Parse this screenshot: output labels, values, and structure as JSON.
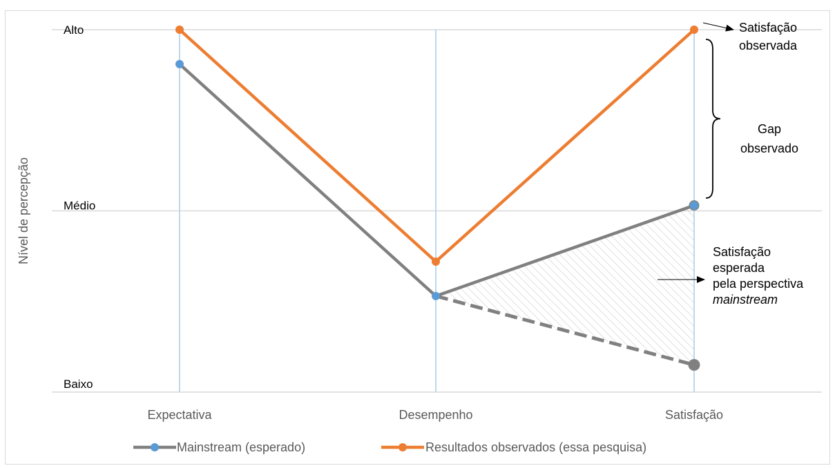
{
  "chart_data": {
    "type": "line",
    "categories": [
      "Expectativa",
      "Desempenho",
      "Satisfação"
    ],
    "y_levels": [
      "Baixo",
      "Médio",
      "Alto"
    ],
    "ylim": [
      0,
      2
    ],
    "ylabel": "Nível de percepção",
    "xlabel": "",
    "grid": true,
    "legend_position": "bottom",
    "series": [
      {
        "name": "Mainstream (esperado)",
        "values": [
          1.81,
          0.53,
          1.03
        ],
        "color": "#808080",
        "marker_color": "#5b9bd5"
      },
      {
        "name": "Resultados observados (essa pesquisa)",
        "values": [
          2.0,
          0.72,
          2.0
        ],
        "color": "#ed7d31",
        "marker_color": "#ed7d31"
      }
    ],
    "projections": [
      {
        "from_category": "Desempenho",
        "from_value": 0.53,
        "to_category": "Satisfação",
        "to_value": 1.03,
        "style": "dashed-thin"
      },
      {
        "from_category": "Desempenho",
        "from_value": 0.53,
        "to_category": "Satisfação",
        "to_value": 0.15,
        "style": "dashed-thick"
      }
    ],
    "annotations": {
      "satisfacao_observada": [
        "Satisfação",
        "observada"
      ],
      "gap_observado": [
        "Gap",
        "observado"
      ],
      "satisfacao_esperada": [
        "Satisfação",
        "esperada",
        "pela perspectiva",
        "mainstream"
      ]
    }
  }
}
